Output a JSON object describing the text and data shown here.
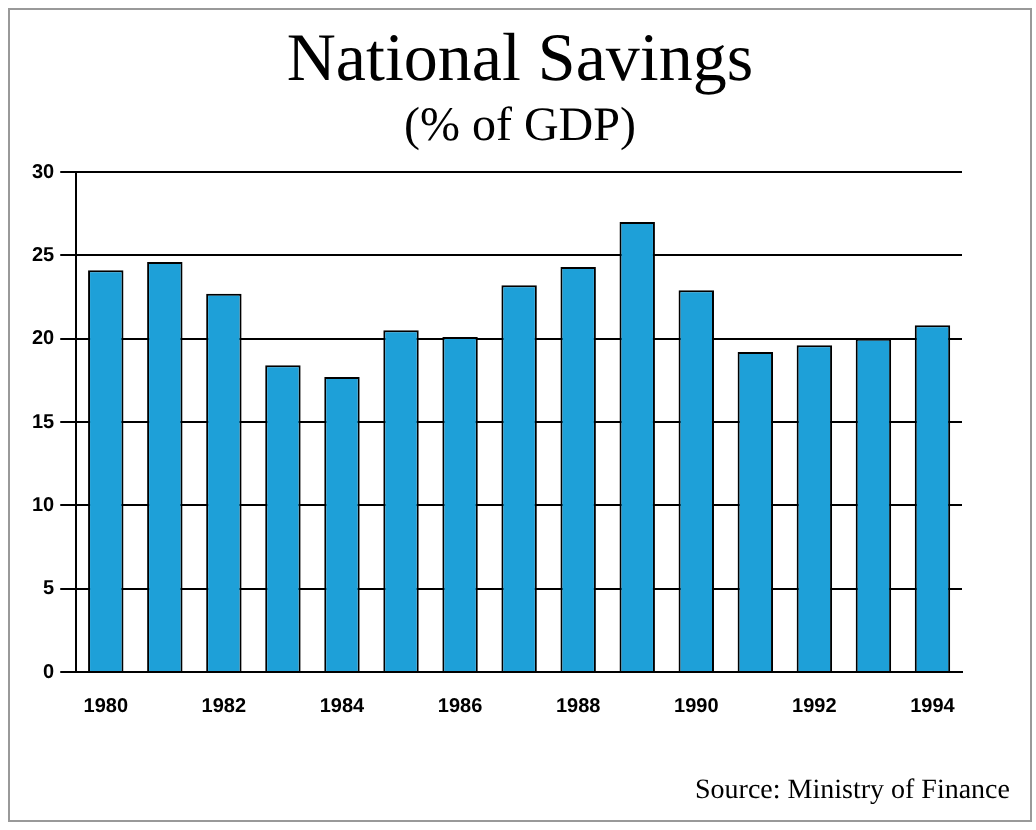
{
  "chart_data": {
    "type": "bar",
    "title": "National Savings",
    "subtitle": "(% of GDP)",
    "categories": [
      "1980",
      null,
      "1982",
      null,
      "1984",
      null,
      "1986",
      null,
      "1988",
      null,
      "1990",
      null,
      "1992",
      null,
      "1994"
    ],
    "values": [
      24.1,
      24.6,
      22.7,
      18.4,
      17.7,
      20.5,
      20.1,
      23.2,
      24.3,
      27,
      22.9,
      19.2,
      19.6,
      20,
      20.8
    ],
    "color": "#1ea0d8",
    "ylim": [
      0,
      30
    ],
    "yticks": [
      0,
      5,
      10,
      15,
      20,
      25,
      30
    ],
    "grid": "y",
    "annotations": [
      "Source: Ministry of Finance"
    ]
  }
}
